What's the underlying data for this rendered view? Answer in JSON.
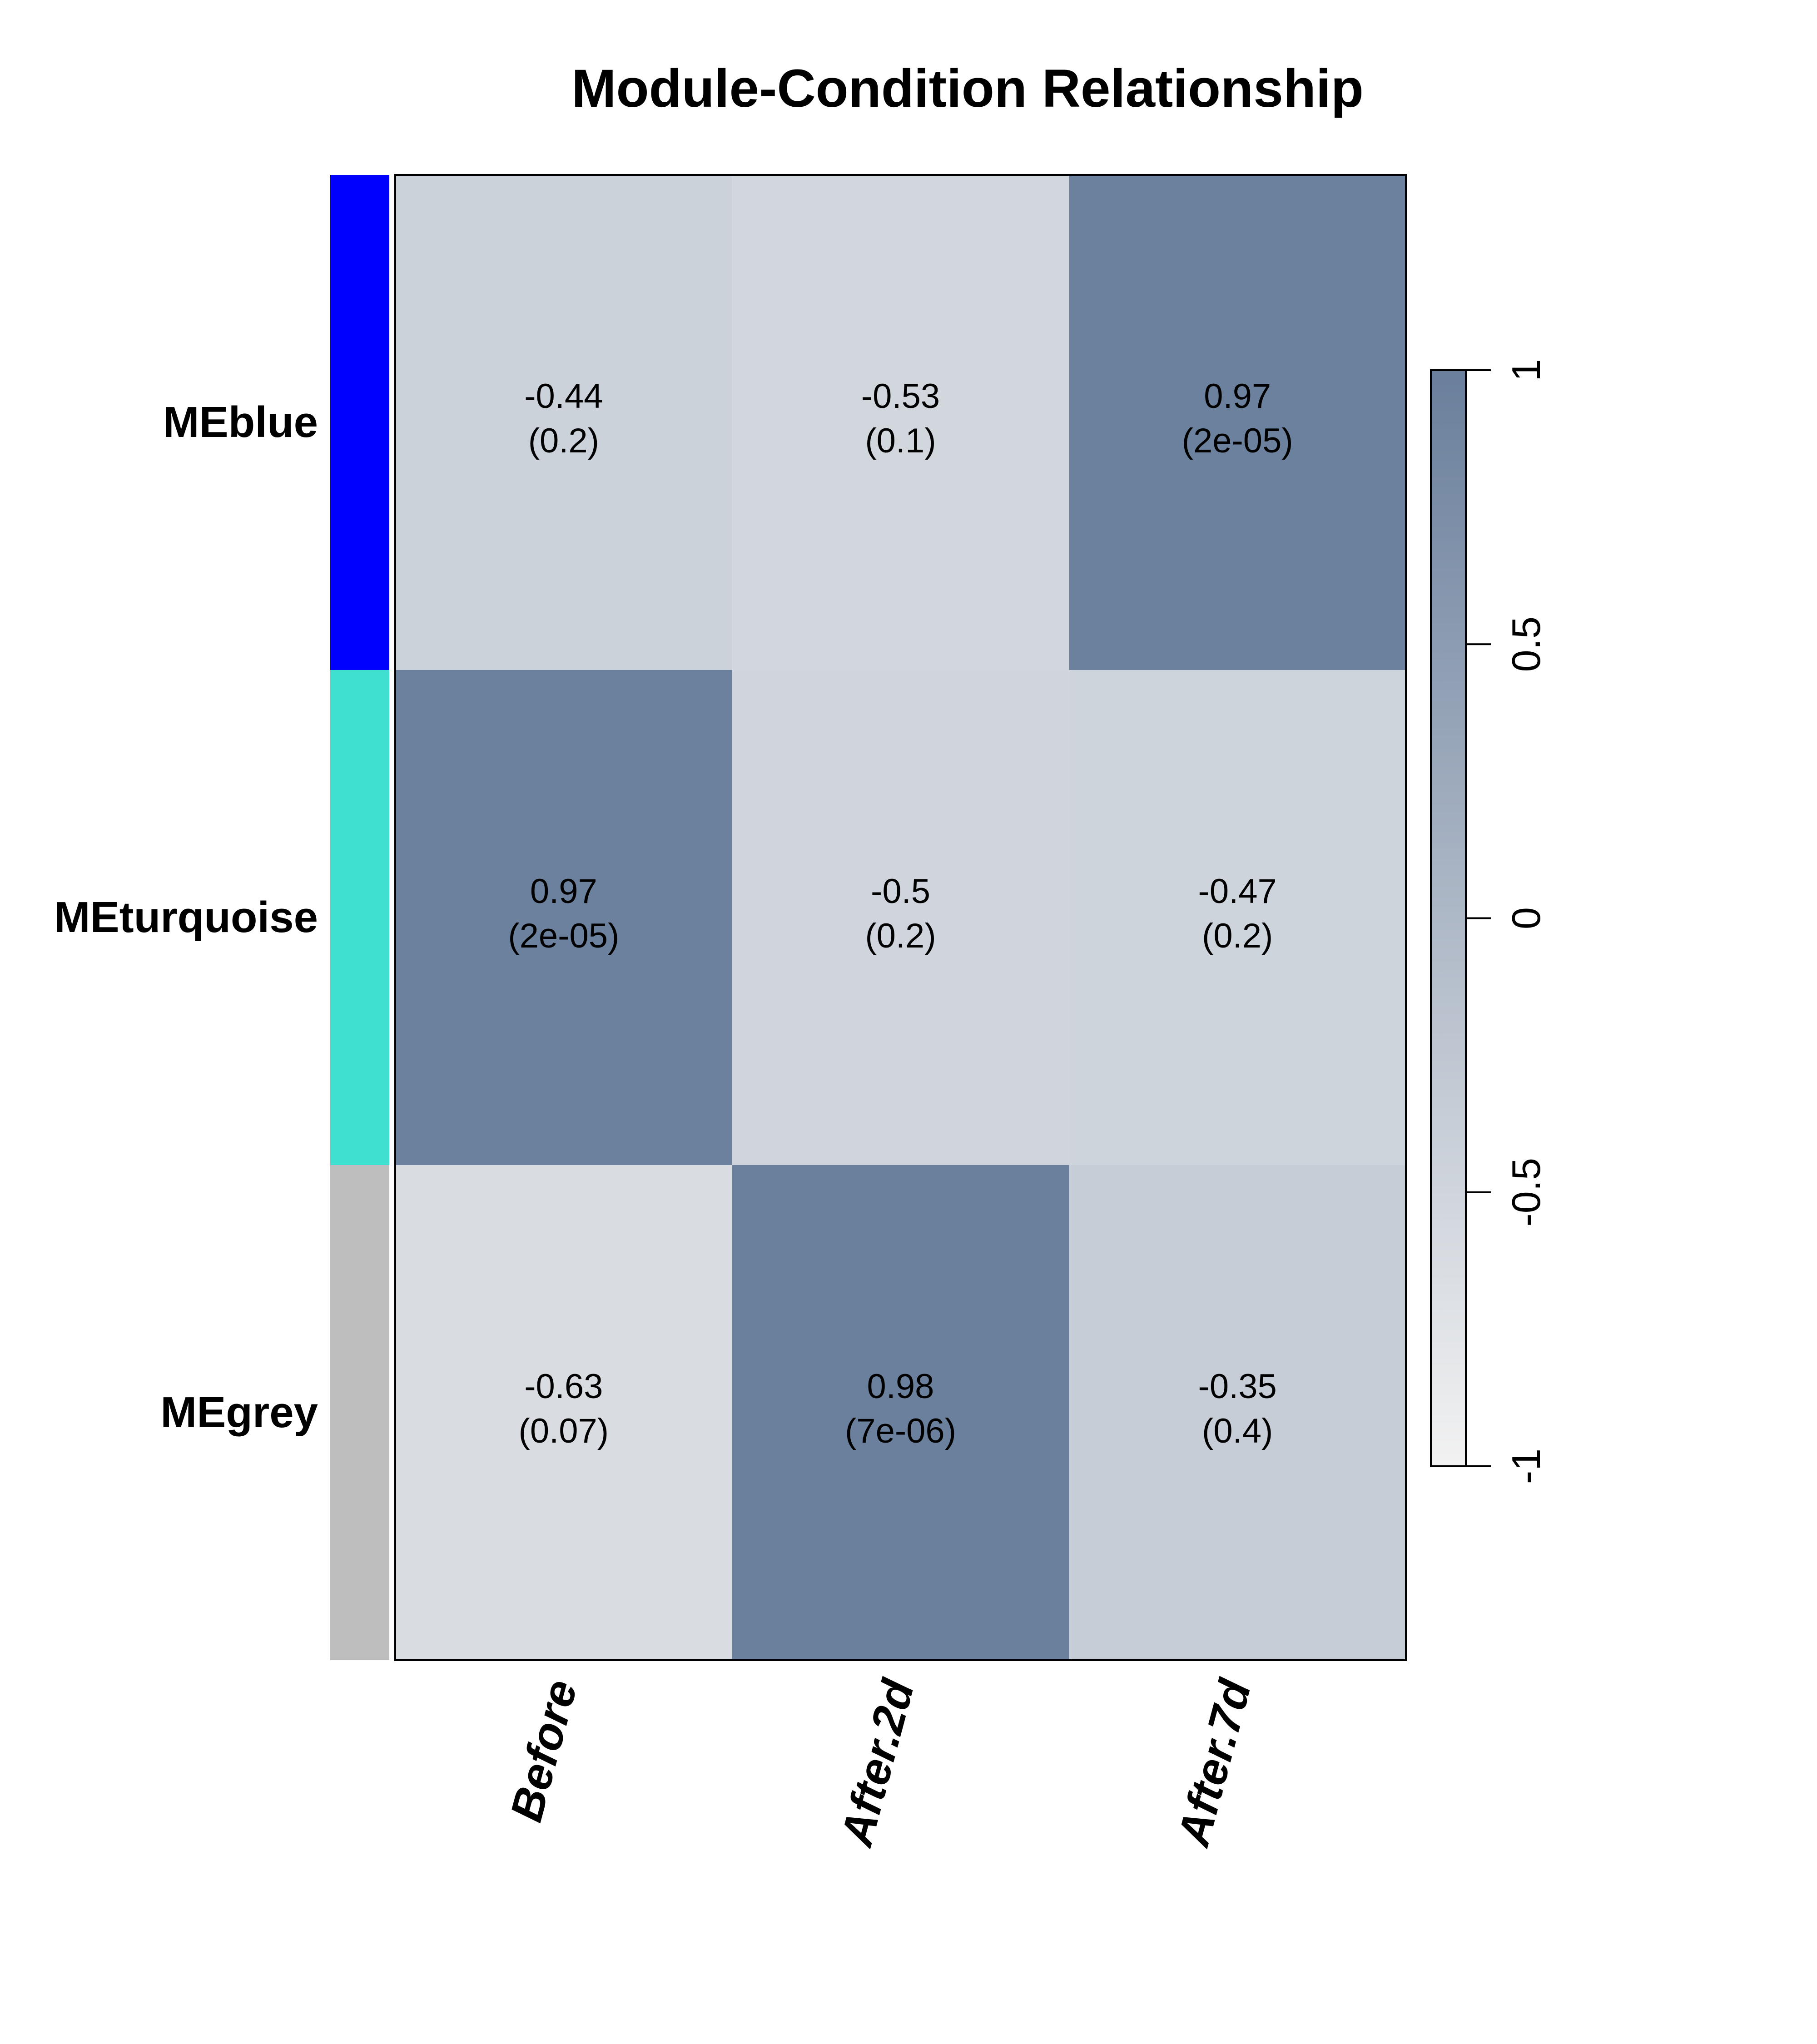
{
  "chart_data": {
    "type": "heatmap",
    "title": "Module-Condition Relationship",
    "rows": [
      {
        "label": "MEblue",
        "color": "#0000ff"
      },
      {
        "label": "MEturquoise",
        "color": "#40e0d0"
      },
      {
        "label": "MEgrey",
        "color": "#bebebe"
      }
    ],
    "columns": [
      "Before",
      "After.2d",
      "After.7d"
    ],
    "values": [
      [
        -0.44,
        -0.53,
        0.97
      ],
      [
        0.97,
        -0.5,
        -0.47
      ],
      [
        -0.63,
        0.98,
        -0.35
      ]
    ],
    "cell_labels": [
      [
        [
          "-0.44",
          "(0.2)"
        ],
        [
          "-0.53",
          "(0.1)"
        ],
        [
          "0.97",
          "(2e-05)"
        ]
      ],
      [
        [
          "0.97",
          "(2e-05)"
        ],
        [
          "-0.5",
          "(0.2)"
        ],
        [
          "-0.47",
          "(0.2)"
        ]
      ],
      [
        [
          "-0.63",
          "(0.07)"
        ],
        [
          "0.98",
          "(7e-06)"
        ],
        [
          "-0.35",
          "(0.4)"
        ]
      ]
    ],
    "colorbar": {
      "range": [
        -1,
        1
      ],
      "ticks": [
        -1,
        -0.5,
        0,
        0.5,
        1
      ],
      "tick_labels": [
        "-1",
        "-0.5",
        "0",
        "0.5",
        "1"
      ],
      "low_color": "#f2f2f2",
      "high_color": "#6a7f9c"
    }
  }
}
